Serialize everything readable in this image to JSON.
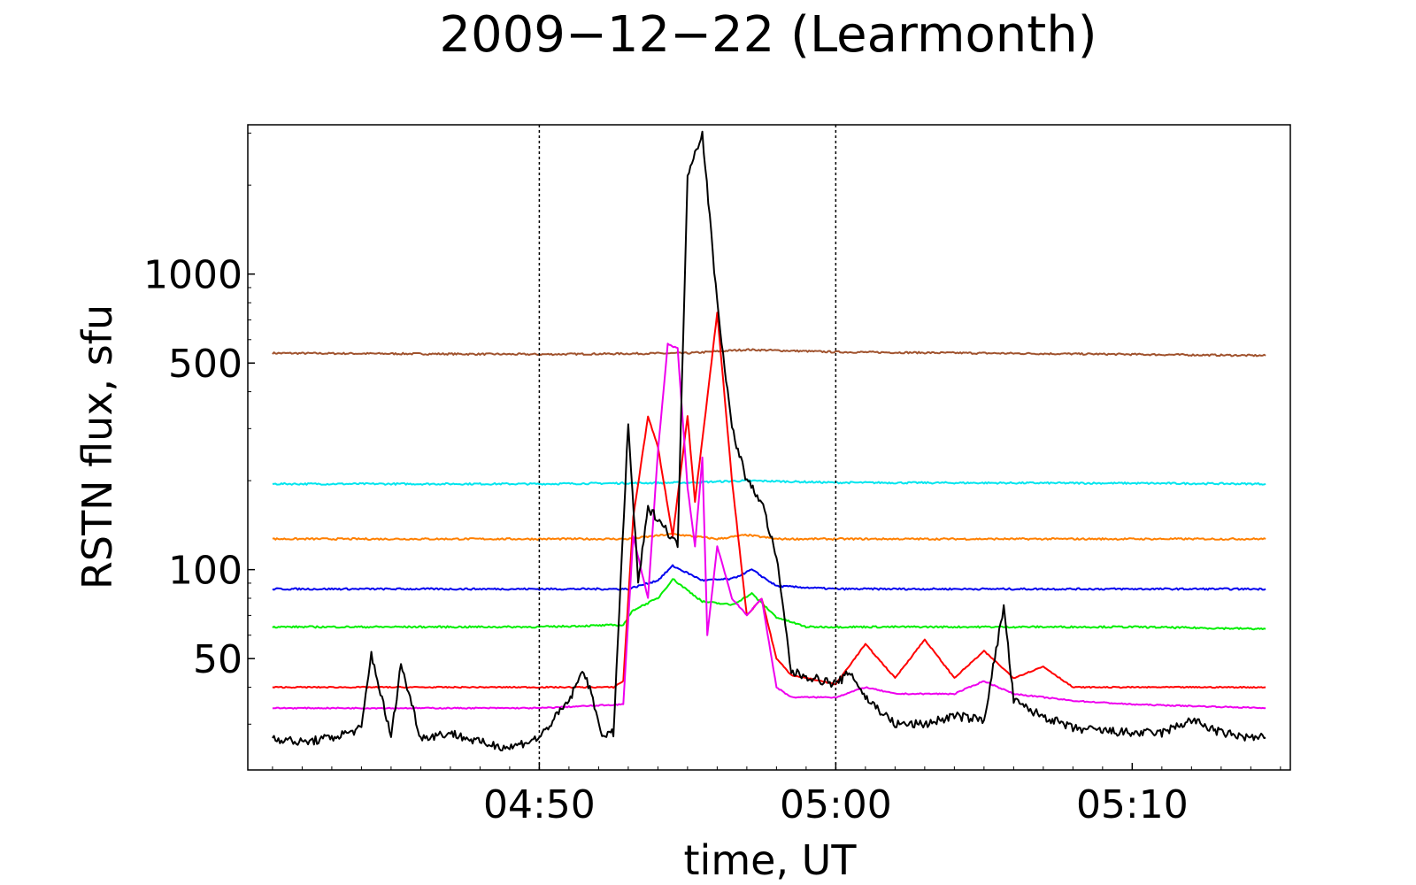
{
  "chart_data": {
    "type": "line",
    "title": "2009−12−22  (Learmonth)",
    "xlabel": "time, UT",
    "ylabel": "RSTN flux, sfu",
    "y_scale": "log",
    "x_range": [
      "04:40:10",
      "05:15:20"
    ],
    "ylim": [
      21,
      3200
    ],
    "x_ticks": [
      "04:50",
      "05:00",
      "05:10"
    ],
    "y_ticks": [
      50,
      100,
      500,
      1000
    ],
    "vertical_lines": [
      "04:50",
      "05:00"
    ],
    "grid": false,
    "series": [
      {
        "color": "#a0522d",
        "x": [
          "04:41",
          "04:50",
          "04:55",
          "04:57",
          "05:00",
          "05:10",
          "05:14:30"
        ],
        "values": [
          540,
          535,
          540,
          555,
          545,
          535,
          530
        ]
      },
      {
        "color": "#00e5ee",
        "x": [
          "04:41",
          "04:50",
          "04:55",
          "04:57",
          "05:00",
          "05:10",
          "05:14:30"
        ],
        "values": [
          195,
          195,
          197,
          200,
          197,
          196,
          195
        ]
      },
      {
        "color": "#ff7f00",
        "x": [
          "04:41",
          "04:50",
          "04:53",
          "04:54:30",
          "04:56",
          "04:57",
          "04:58",
          "05:00",
          "05:10",
          "05:14:30"
        ],
        "values": [
          127,
          127,
          127,
          132,
          127,
          131,
          127,
          127,
          127,
          127
        ]
      },
      {
        "color": "#0000ee",
        "x": [
          "04:41",
          "04:50",
          "04:53",
          "04:54",
          "04:54:30",
          "04:55:30",
          "04:56:30",
          "04:57:10",
          "04:58",
          "05:00",
          "05:10",
          "05:14:30"
        ],
        "values": [
          86,
          86,
          86,
          92,
          103,
          92,
          93,
          100,
          88,
          86,
          86,
          86
        ]
      },
      {
        "color": "#00ee00",
        "x": [
          "04:41",
          "04:50",
          "04:52:50",
          "04:53:10",
          "04:54",
          "04:54:30",
          "04:55:30",
          "04:56:30",
          "04:57:10",
          "04:58",
          "04:59",
          "05:10",
          "05:14:30"
        ],
        "values": [
          64,
          64,
          65,
          73,
          80,
          93,
          78,
          76,
          83,
          69,
          64,
          64,
          63
        ]
      },
      {
        "color": "#ff0000",
        "x": [
          "04:41",
          "04:52:30",
          "04:52:50",
          "04:53:10",
          "04:53:40",
          "04:54",
          "04:54:30",
          "04:55",
          "04:55:15",
          "04:55:40",
          "04:56",
          "04:56:30",
          "04:57",
          "04:57:30",
          "04:58",
          "04:58:30",
          "05:00",
          "05:01",
          "05:02",
          "05:03",
          "05:04",
          "05:05",
          "05:06",
          "05:07",
          "05:08",
          "05:10",
          "05:14:30"
        ],
        "values": [
          40,
          40,
          42,
          150,
          330,
          260,
          130,
          330,
          170,
          380,
          740,
          200,
          70,
          80,
          50,
          44,
          41,
          56,
          43,
          58,
          43,
          53,
          43,
          47,
          40,
          40,
          40
        ]
      },
      {
        "color": "#ee00ee",
        "x": [
          "04:41",
          "04:45",
          "04:50",
          "04:52:50",
          "04:53:10",
          "04:53:40",
          "04:54",
          "04:54:20",
          "04:54:40",
          "04:55",
          "04:55:15",
          "04:55:30",
          "04:55:40",
          "04:56",
          "04:56:30",
          "04:57",
          "04:57:30",
          "04:58",
          "04:58:30",
          "05:00",
          "05:01",
          "05:02",
          "05:04",
          "05:05",
          "05:06",
          "05:08",
          "05:10",
          "05:14:30"
        ],
        "values": [
          34,
          34,
          34,
          35,
          130,
          80,
          250,
          580,
          560,
          190,
          120,
          240,
          60,
          120,
          80,
          70,
          80,
          40,
          37,
          37,
          40,
          38,
          38,
          42,
          38,
          36,
          35,
          34
        ]
      },
      {
        "color": "#000000",
        "x": [
          "04:41",
          "04:42",
          "04:43",
          "04:44",
          "04:44:20",
          "04:45",
          "04:45:20",
          "04:46",
          "04:47",
          "04:48",
          "04:49",
          "04:50",
          "04:51",
          "04:51:30",
          "04:52:10",
          "04:52:30",
          "04:53",
          "04:53:20",
          "04:53:40",
          "04:54",
          "04:54:40",
          "04:55",
          "04:55:30",
          "04:56",
          "04:56:30",
          "04:57",
          "04:57:30",
          "04:58",
          "04:58:30",
          "05:00",
          "05:00:30",
          "05:01",
          "05:02",
          "05:03",
          "05:04",
          "05:05",
          "05:05:40",
          "05:06",
          "05:06:40",
          "05:08",
          "05:10",
          "05:11",
          "05:12",
          "05:13",
          "05:14",
          "05:14:30"
        ],
        "values": [
          27,
          26,
          27,
          29,
          52,
          27,
          48,
          27,
          28,
          26,
          25,
          27,
          36,
          46,
          27,
          28,
          310,
          90,
          160,
          150,
          120,
          2200,
          3000,
          800,
          300,
          200,
          170,
          110,
          45,
          41,
          45,
          37,
          30,
          30,
          32,
          31,
          75,
          36,
          33,
          29,
          28,
          28,
          31,
          28,
          27,
          27
        ]
      }
    ]
  }
}
